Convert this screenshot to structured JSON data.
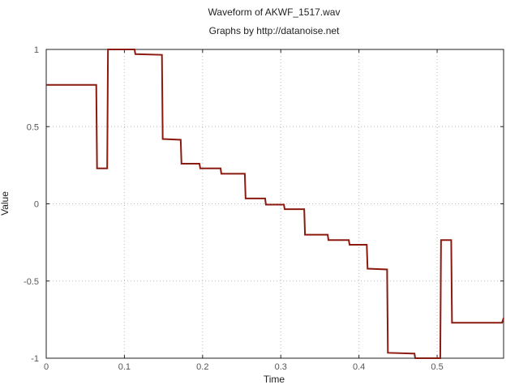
{
  "chart_data": {
    "type": "line",
    "title": "Waveform of AKWF_1517.wav",
    "subtitle": "Graphs by http://datanoise.net",
    "xlabel": "Time",
    "ylabel": "Value",
    "xlim": [
      0,
      0.585
    ],
    "ylim": [
      -1,
      1
    ],
    "grid": true,
    "x_ticks": [
      0,
      0.1,
      0.2,
      0.3,
      0.4,
      0.5
    ],
    "x_tick_labels": [
      "0",
      "0.1",
      "0.2",
      "0.3",
      "0.4",
      "0.5"
    ],
    "y_ticks": [
      -1,
      -0.5,
      0,
      0.5,
      1
    ],
    "y_tick_labels": [
      "-1",
      "-0.5",
      "0",
      "0.5",
      "1"
    ],
    "series": [
      {
        "name": "AKWF_1517",
        "color": "#8b1a10",
        "x": [
          0,
          0.064,
          0.065,
          0.078,
          0.079,
          0.113,
          0.114,
          0.148,
          0.149,
          0.172,
          0.173,
          0.196,
          0.197,
          0.223,
          0.224,
          0.254,
          0.255,
          0.28,
          0.281,
          0.304,
          0.305,
          0.33,
          0.331,
          0.36,
          0.361,
          0.387,
          0.388,
          0.41,
          0.411,
          0.436,
          0.437,
          0.471,
          0.472,
          0.504,
          0.505,
          0.518,
          0.519,
          0.583,
          0.585
        ],
        "y": [
          0.77,
          0.77,
          0.23,
          0.23,
          1.0,
          1.0,
          0.97,
          0.965,
          0.42,
          0.415,
          0.26,
          0.26,
          0.23,
          0.23,
          0.195,
          0.195,
          0.035,
          0.035,
          -0.005,
          -0.005,
          -0.035,
          -0.035,
          -0.2,
          -0.2,
          -0.235,
          -0.235,
          -0.265,
          -0.265,
          -0.42,
          -0.425,
          -0.965,
          -0.97,
          -1.0,
          -1.0,
          -0.235,
          -0.235,
          -0.77,
          -0.77,
          -0.74
        ]
      }
    ]
  }
}
